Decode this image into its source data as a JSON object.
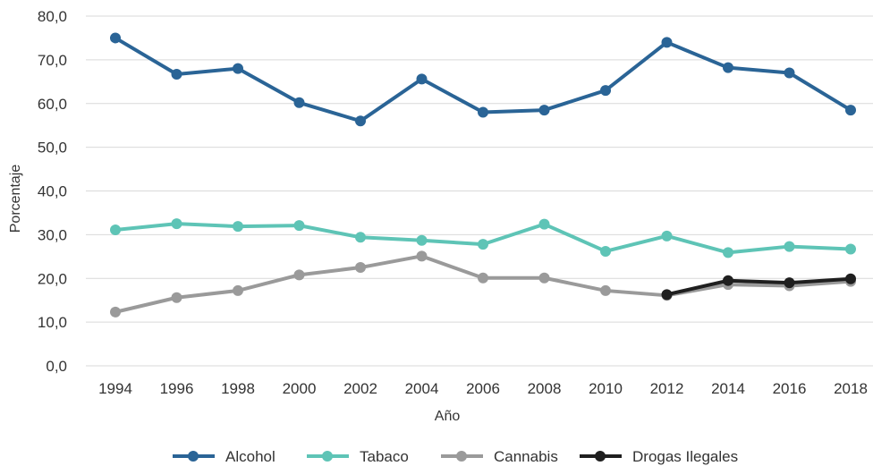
{
  "chart_data": {
    "type": "line",
    "title": "",
    "xlabel": "Año",
    "ylabel": "Porcentaje",
    "ylim": [
      0,
      80
    ],
    "yticks": [
      "0,0",
      "10,0",
      "20,0",
      "30,0",
      "40,0",
      "50,0",
      "60,0",
      "70,0",
      "80,0"
    ],
    "x": [
      "1994",
      "1996",
      "1998",
      "2000",
      "2002",
      "2004",
      "2006",
      "2008",
      "2010",
      "2012",
      "2014",
      "2016",
      "2018"
    ],
    "grid": "horizontal",
    "legend": "bottom",
    "series": [
      {
        "name": "Alcohol",
        "color": "#2a6496",
        "values": [
          75.0,
          66.7,
          68.0,
          60.2,
          56.0,
          65.6,
          58.0,
          58.5,
          63.0,
          74.0,
          68.2,
          67.0,
          58.5
        ]
      },
      {
        "name": "Tabaco",
        "color": "#5ec4b6",
        "values": [
          31.1,
          32.5,
          31.9,
          32.1,
          29.4,
          28.7,
          27.8,
          32.4,
          26.2,
          29.7,
          25.9,
          27.3,
          26.7
        ]
      },
      {
        "name": "Cannabis",
        "color": "#9a9a9a",
        "values": [
          12.3,
          15.6,
          17.2,
          20.8,
          22.5,
          25.1,
          20.1,
          20.1,
          17.2,
          16.1,
          18.6,
          18.3,
          19.3
        ]
      },
      {
        "name": "Drogas Ilegales",
        "color": "#1f1f1f",
        "values": [
          null,
          null,
          null,
          null,
          null,
          null,
          null,
          null,
          null,
          16.3,
          19.5,
          19.0,
          19.9
        ]
      }
    ]
  }
}
